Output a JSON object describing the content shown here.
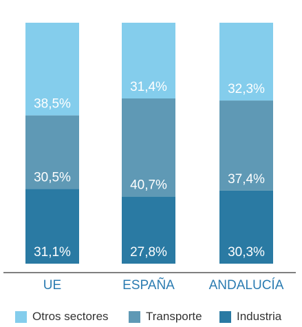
{
  "chart_data": {
    "type": "bar",
    "stacked": true,
    "percent": true,
    "categories": [
      "UE",
      "ESPAÑA",
      "ANDALUCÍA"
    ],
    "series": [
      {
        "name": "Industria",
        "color": "#2a7aa3",
        "values": [
          31.1,
          27.8,
          30.3
        ],
        "labels": [
          "31,1%",
          "27,8%",
          "30,3%"
        ]
      },
      {
        "name": "Transporte",
        "color": "#5f99b5",
        "values": [
          30.5,
          40.7,
          37.4
        ],
        "labels": [
          "30,5%",
          "40,7%",
          "37,4%"
        ]
      },
      {
        "name": "Otros sectores",
        "color": "#84cdec",
        "values": [
          38.5,
          31.4,
          32.3
        ],
        "labels": [
          "38,5%",
          "31,4%",
          "32,3%"
        ]
      }
    ],
    "legend_order": [
      "Otros sectores",
      "Transporte",
      "Industria"
    ],
    "ylim": [
      0,
      100
    ],
    "grid": false,
    "legend_position": "bottom"
  },
  "colors": {
    "axis_line": "#333333",
    "category_text": "#2a7bb1",
    "data_label_text": "#ffffff",
    "legend_text": "#333333"
  }
}
